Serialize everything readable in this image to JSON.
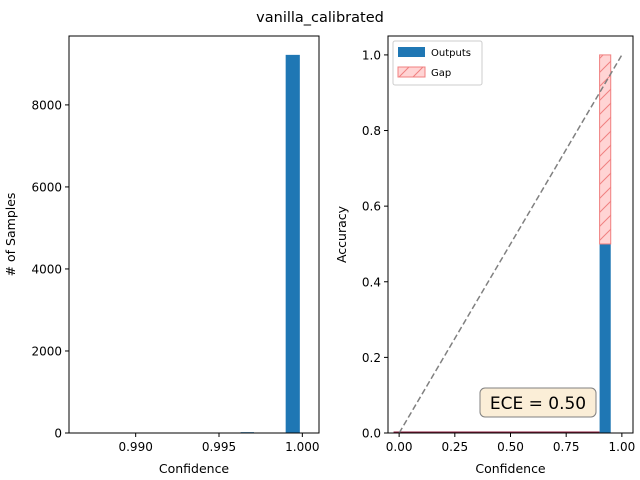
{
  "figure": {
    "suptitle": "vanilla_calibrated"
  },
  "chart_data": [
    {
      "type": "bar",
      "title": "",
      "xlabel": "Confidence",
      "ylabel": "# of Samples",
      "xlim": [
        0.986,
        1.001
      ],
      "ylim": [
        0,
        9680
      ],
      "xticks": [
        0.99,
        0.995,
        1.0
      ],
      "xtick_labels": [
        "0.990",
        "0.995",
        "1.000"
      ],
      "yticks": [
        0,
        2000,
        4000,
        6000,
        8000
      ],
      "ytick_labels": [
        "0",
        "2000",
        "4000",
        "6000",
        "8000"
      ],
      "bins": [
        {
          "x0": 0.9963,
          "x1": 0.9971,
          "value": 20
        },
        {
          "x0": 0.9972,
          "x1": 0.998,
          "value": 0
        },
        {
          "x0": 0.999,
          "x1": 0.99985,
          "value": 9220
        }
      ],
      "grid": false,
      "bar_color": "#1f77b4"
    },
    {
      "type": "bar",
      "title": "",
      "xlabel": "Confidence",
      "ylabel": "Accuracy",
      "xlim": [
        -0.05,
        1.05
      ],
      "ylim": [
        0,
        1.05
      ],
      "xticks": [
        0.0,
        0.25,
        0.5,
        0.75,
        1.0
      ],
      "xtick_labels": [
        "0.00",
        "0.25",
        "0.50",
        "0.75",
        "1.00"
      ],
      "yticks": [
        0.0,
        0.2,
        0.4,
        0.6,
        0.8,
        1.0
      ],
      "ytick_labels": [
        "0.0",
        "0.2",
        "0.4",
        "0.6",
        "0.8",
        "1.0"
      ],
      "bin_width": 0.05,
      "bins": [
        {
          "center": 0.925,
          "outputs": 0.5,
          "confidence": 1.0
        }
      ],
      "baseline_range": [
        -0.025,
        0.9
      ],
      "diagonal": {
        "from": [
          0,
          0
        ],
        "to": [
          1,
          1
        ],
        "color": "#808080",
        "style": "dashed"
      },
      "legend": {
        "placement": "top-left",
        "entries": [
          {
            "label": "Outputs",
            "color": "#1f77b4"
          },
          {
            "label": "Gap",
            "color": "#ffd1d1",
            "edge": "#f08080"
          }
        ]
      },
      "annotation": {
        "text": "ECE = 0.50",
        "box_color": "#fbeed7",
        "edge_color": "#808080"
      },
      "grid": false
    }
  ]
}
